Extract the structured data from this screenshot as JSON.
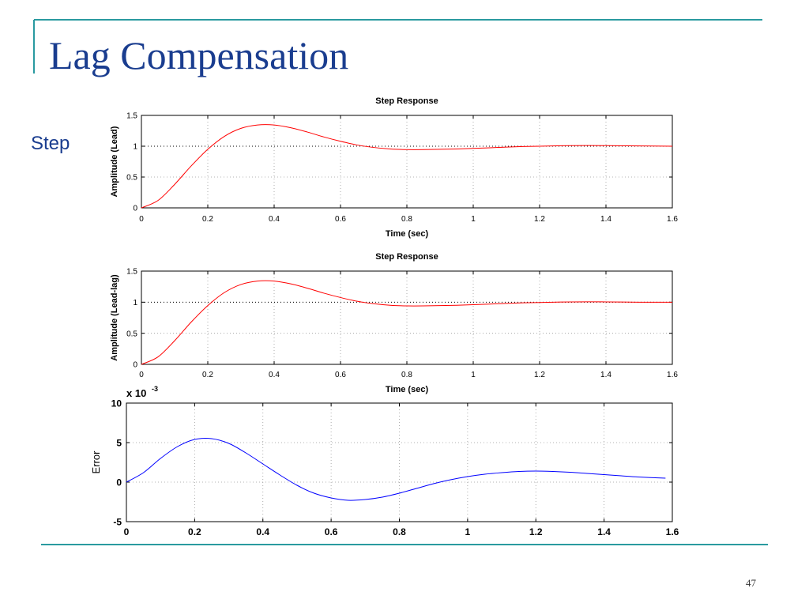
{
  "slide": {
    "title": "Lag Compensation",
    "bullet": "Step",
    "page_number": "47"
  },
  "colors": {
    "title": "#1a3d8f",
    "rule": "#2a9aa0",
    "lead_curve": "#ff0000",
    "error_curve": "#0000ff"
  },
  "chart_data": [
    {
      "type": "line",
      "title": "Step Response",
      "xlabel": "Time (sec)",
      "ylabel": "Amplitude (Lead)",
      "xlim": [
        0,
        1.6
      ],
      "ylim": [
        0,
        1.5
      ],
      "xticks": [
        "0",
        "0.2",
        "0.4",
        "0.6",
        "0.8",
        "1",
        "1.2",
        "1.4",
        "1.6"
      ],
      "yticks": [
        "0",
        "0.5",
        "1",
        "1.5"
      ],
      "grid": true,
      "reference_line": 1,
      "series": [
        {
          "color": "#ff0000",
          "x": [
            0,
            0.05,
            0.1,
            0.15,
            0.2,
            0.25,
            0.3,
            0.35,
            0.4,
            0.45,
            0.5,
            0.55,
            0.6,
            0.65,
            0.7,
            0.75,
            0.8,
            0.85,
            0.9,
            0.95,
            1.0,
            1.05,
            1.1,
            1.15,
            1.2,
            1.3,
            1.4,
            1.5,
            1.6
          ],
          "y": [
            0,
            0.12,
            0.38,
            0.68,
            0.95,
            1.16,
            1.29,
            1.345,
            1.345,
            1.3,
            1.23,
            1.15,
            1.08,
            1.02,
            0.98,
            0.955,
            0.945,
            0.945,
            0.95,
            0.955,
            0.965,
            0.975,
            0.985,
            0.995,
            1.0,
            1.01,
            1.01,
            1.005,
            1.0
          ]
        }
      ]
    },
    {
      "type": "line",
      "title": "Step Response",
      "xlabel": "Time (sec)",
      "ylabel": "Amplitude (Lead-lag)",
      "xlim": [
        0,
        1.6
      ],
      "ylim": [
        0,
        1.5
      ],
      "xticks": [
        "0",
        "0.2",
        "0.4",
        "0.6",
        "0.8",
        "1",
        "1.2",
        "1.4",
        "1.6"
      ],
      "yticks": [
        "0",
        "0.5",
        "1",
        "1.5"
      ],
      "grid": true,
      "reference_line": 1,
      "series": [
        {
          "color": "#ff0000",
          "x": [
            0,
            0.05,
            0.1,
            0.15,
            0.2,
            0.25,
            0.3,
            0.35,
            0.4,
            0.45,
            0.5,
            0.55,
            0.6,
            0.65,
            0.7,
            0.75,
            0.8,
            0.85,
            0.9,
            0.95,
            1.0,
            1.05,
            1.1,
            1.15,
            1.2,
            1.3,
            1.4,
            1.5,
            1.6
          ],
          "y": [
            0,
            0.12,
            0.38,
            0.68,
            0.945,
            1.155,
            1.285,
            1.34,
            1.34,
            1.295,
            1.225,
            1.145,
            1.075,
            1.015,
            0.975,
            0.95,
            0.94,
            0.94,
            0.945,
            0.95,
            0.96,
            0.97,
            0.98,
            0.99,
            0.995,
            1.005,
            1.005,
            1.0,
            1.0
          ]
        }
      ]
    },
    {
      "type": "line",
      "title": "",
      "xlabel": "",
      "ylabel": "Error",
      "scale_label": "x 10",
      "scale_exponent": "-3",
      "xlim": [
        0,
        1.6
      ],
      "ylim": [
        -5,
        10
      ],
      "xticks": [
        "0",
        "0.2",
        "0.4",
        "0.6",
        "0.8",
        "1",
        "1.2",
        "1.4",
        "1.6"
      ],
      "yticks": [
        "-5",
        "0",
        "5",
        "10"
      ],
      "grid": true,
      "series": [
        {
          "color": "#0000ff",
          "x": [
            0,
            0.05,
            0.1,
            0.15,
            0.2,
            0.25,
            0.3,
            0.35,
            0.4,
            0.45,
            0.5,
            0.55,
            0.6,
            0.65,
            0.7,
            0.75,
            0.8,
            0.85,
            0.9,
            0.95,
            1.0,
            1.05,
            1.1,
            1.15,
            1.2,
            1.25,
            1.3,
            1.35,
            1.4,
            1.45,
            1.5,
            1.58
          ],
          "y": [
            0,
            1.2,
            3.0,
            4.5,
            5.4,
            5.5,
            4.9,
            3.7,
            2.3,
            0.9,
            -0.4,
            -1.4,
            -2.0,
            -2.3,
            -2.2,
            -1.9,
            -1.4,
            -0.8,
            -0.2,
            0.3,
            0.7,
            1.0,
            1.2,
            1.35,
            1.4,
            1.35,
            1.25,
            1.1,
            0.95,
            0.8,
            0.65,
            0.5
          ]
        }
      ]
    }
  ]
}
